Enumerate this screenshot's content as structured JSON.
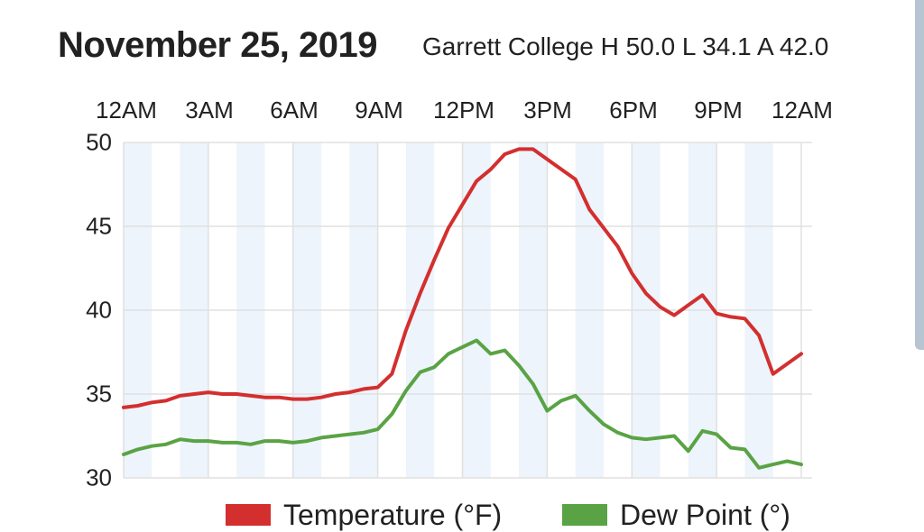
{
  "header": {
    "date": "November 25, 2019",
    "station_summary": "Garrett College H 50.0 L 34.1 A 42.0"
  },
  "colors": {
    "temperature": "#d32f2f",
    "dew_point": "#5aa345",
    "band": "#edf4fb",
    "grid": "#e0e0e0"
  },
  "chart_data": {
    "type": "line",
    "title": "November 25, 2019",
    "subtitle": "Garrett College H 50.0 L 34.1 A 42.0",
    "xlabel": "",
    "ylabel": "",
    "x_tick_labels": [
      "12AM",
      "3AM",
      "6AM",
      "9AM",
      "12PM",
      "3PM",
      "6PM",
      "9PM",
      "12AM"
    ],
    "y_tick_labels": [
      "50",
      "45",
      "40",
      "35",
      "30"
    ],
    "xlim_hours": [
      0,
      24
    ],
    "ylim": [
      30,
      50
    ],
    "grid": true,
    "legend": "bottom",
    "series": [
      {
        "name": "Temperature (°F)",
        "x_hours": [
          0,
          0.5,
          1,
          1.5,
          2,
          2.5,
          3,
          3.5,
          4,
          4.5,
          5,
          5.5,
          6,
          6.5,
          7,
          7.5,
          8,
          8.5,
          9,
          9.5,
          10,
          10.5,
          11,
          11.5,
          12,
          12.5,
          13,
          13.5,
          14,
          14.5,
          15,
          15.5,
          16,
          16.5,
          17,
          17.5,
          18,
          18.5,
          19,
          19.5,
          20,
          20.5,
          21,
          21.5,
          22,
          22.5,
          23,
          23.5,
          24
        ],
        "values": [
          34.2,
          34.3,
          34.5,
          34.6,
          34.9,
          35.0,
          35.1,
          35.0,
          35.0,
          34.9,
          34.8,
          34.8,
          34.7,
          34.7,
          34.8,
          35.0,
          35.1,
          35.3,
          35.4,
          36.2,
          38.8,
          41.0,
          43.0,
          44.9,
          46.3,
          47.7,
          48.4,
          49.3,
          49.6,
          49.6,
          49.0,
          48.4,
          47.8,
          46.0,
          44.9,
          43.8,
          42.2,
          41.0,
          40.2,
          39.7,
          40.3,
          40.9,
          39.8,
          39.6,
          39.5,
          38.5,
          36.2,
          36.8,
          37.4
        ]
      },
      {
        "name": "Dew Point (°)",
        "x_hours": [
          0,
          0.5,
          1,
          1.5,
          2,
          2.5,
          3,
          3.5,
          4,
          4.5,
          5,
          5.5,
          6,
          6.5,
          7,
          7.5,
          8,
          8.5,
          9,
          9.5,
          10,
          10.5,
          11,
          11.5,
          12,
          12.5,
          13,
          13.5,
          14,
          14.5,
          15,
          15.5,
          16,
          16.5,
          17,
          17.5,
          18,
          18.5,
          19,
          19.5,
          20,
          20.5,
          21,
          21.5,
          22,
          22.5,
          23,
          23.5,
          24
        ],
        "values": [
          31.4,
          31.7,
          31.9,
          32.0,
          32.3,
          32.2,
          32.2,
          32.1,
          32.1,
          32.0,
          32.2,
          32.2,
          32.1,
          32.2,
          32.4,
          32.5,
          32.6,
          32.7,
          32.9,
          33.8,
          35.2,
          36.3,
          36.6,
          37.4,
          37.8,
          38.2,
          37.4,
          37.6,
          36.7,
          35.6,
          34.0,
          34.6,
          34.9,
          34.0,
          33.2,
          32.7,
          32.4,
          32.3,
          32.4,
          32.5,
          31.6,
          32.8,
          32.6,
          31.8,
          31.7,
          30.6,
          30.8,
          31.0,
          30.8
        ]
      }
    ]
  }
}
